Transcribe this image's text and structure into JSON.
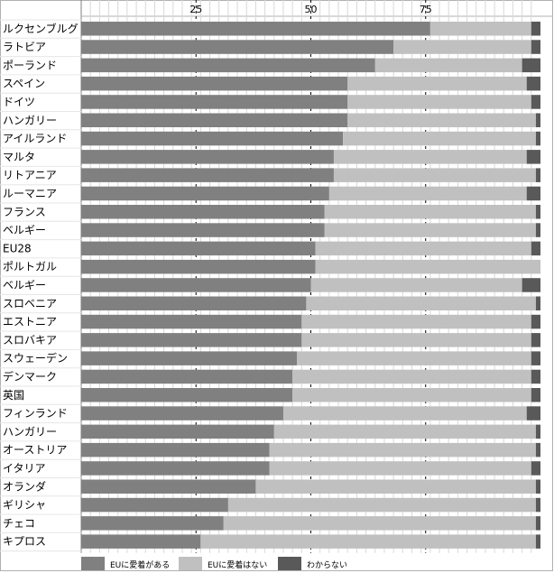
{
  "chart_data": {
    "type": "bar",
    "stacked": true,
    "orientation": "horizontal",
    "title": "",
    "xlabel": "",
    "ylabel": "",
    "xlim": [
      0,
      100
    ],
    "xticks": [
      "25",
      "50",
      "75"
    ],
    "xtick_values": [
      25,
      50,
      75
    ],
    "legend_position": "bottom",
    "grid": true,
    "categories": [
      "ルクセンブルグ",
      "ラトビア",
      "ポーランド",
      "スペイン",
      "ドイツ",
      "ハンガリー",
      "アイルランド",
      "マルタ",
      "リトアニア",
      "ルーマニア",
      "フランス",
      "ベルギー",
      "EU28",
      "ポルトガル",
      "ベルギー",
      "スロベニア",
      "エストニア",
      "スロバキア",
      "スウェーデン",
      "デンマーク",
      "英国",
      "フィンランド",
      "ハンガリー",
      "オーストリア",
      "イタリア",
      "オランダ",
      "ギリシャ",
      "チェコ",
      "キプロス"
    ],
    "series": [
      {
        "name": "EUに愛着がある",
        "color": "#808080",
        "values": [
          76,
          68,
          64,
          58,
          58,
          58,
          57,
          55,
          55,
          54,
          53,
          53,
          51,
          51,
          50,
          49,
          48,
          48,
          47,
          46,
          46,
          44,
          42,
          41,
          41,
          38,
          32,
          31,
          26
        ]
      },
      {
        "name": "EUに愛着はない",
        "color": "#c0c0c0",
        "values": [
          22,
          30,
          32,
          39,
          40,
          41,
          42,
          42,
          44,
          43,
          46,
          46,
          47,
          49,
          46,
          50,
          50,
          50,
          51,
          52,
          52,
          53,
          57,
          58,
          57,
          61,
          67,
          68,
          73
        ]
      },
      {
        "name": "わからない",
        "color": "#595959",
        "values": [
          2,
          2,
          4,
          3,
          2,
          1,
          1,
          3,
          1,
          3,
          1,
          1,
          2,
          0,
          4,
          1,
          2,
          2,
          2,
          2,
          2,
          3,
          1,
          1,
          2,
          1,
          1,
          1,
          1
        ]
      }
    ]
  }
}
